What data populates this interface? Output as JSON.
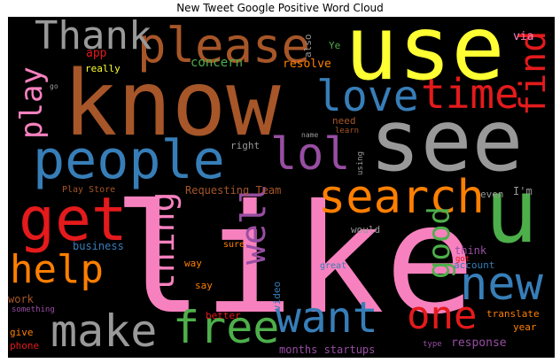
{
  "title": "New Tweet Google Positive Word Cloud",
  "palette": {
    "red": "#e41a1c",
    "blue": "#377eb8",
    "green": "#4daf4a",
    "purple": "#984ea3",
    "orange": "#ff7f00",
    "yellow": "#ffff33",
    "brown": "#a65628",
    "pink": "#f781bf",
    "gray": "#999999",
    "background": "#000000"
  },
  "words": [
    {
      "id": "like",
      "text": "like",
      "color": "#f781bf"
    },
    {
      "id": "know",
      "text": "know",
      "color": "#a65628"
    },
    {
      "id": "use",
      "text": "use",
      "color": "#ffff33"
    },
    {
      "id": "see",
      "text": "see",
      "color": "#999999"
    },
    {
      "id": "u",
      "text": "u",
      "color": "#4daf4a"
    },
    {
      "id": "people",
      "text": "people",
      "color": "#377eb8"
    },
    {
      "id": "please",
      "text": "please",
      "color": "#a65628"
    },
    {
      "id": "get",
      "text": "get",
      "color": "#e41a1c"
    },
    {
      "id": "search",
      "text": "search",
      "color": "#ff7f00"
    },
    {
      "id": "lol",
      "text": "lol",
      "color": "#984ea3"
    },
    {
      "id": "love",
      "text": "love",
      "color": "#377eb8"
    },
    {
      "id": "time",
      "text": "time",
      "color": "#e41a1c"
    },
    {
      "id": "find",
      "text": "find",
      "color": "#e41a1c"
    },
    {
      "id": "thank",
      "text": "Thank",
      "color": "#999999"
    },
    {
      "id": "make",
      "text": "make",
      "color": "#999999"
    },
    {
      "id": "free",
      "text": "free",
      "color": "#4daf4a"
    },
    {
      "id": "want",
      "text": "want",
      "color": "#377eb8"
    },
    {
      "id": "help",
      "text": "help",
      "color": "#ff7f00"
    },
    {
      "id": "new",
      "text": "new",
      "color": "#377eb8"
    },
    {
      "id": "one",
      "text": "one",
      "color": "#e41a1c"
    },
    {
      "id": "good",
      "text": "good",
      "color": "#4daf4a"
    },
    {
      "id": "thing",
      "text": "thing",
      "color": "#f781bf"
    },
    {
      "id": "well",
      "text": "well",
      "color": "#984ea3"
    },
    {
      "id": "play",
      "text": "play",
      "color": "#f781bf"
    },
    {
      "id": "app",
      "text": "app",
      "color": "#e41a1c"
    },
    {
      "id": "really",
      "text": "really",
      "color": "#ffff33"
    },
    {
      "id": "concern",
      "text": "concern",
      "color": "#4daf4a"
    },
    {
      "id": "resolve",
      "text": "resolve",
      "color": "#ff7f00"
    },
    {
      "id": "also",
      "text": "also",
      "color": "#999999"
    },
    {
      "id": "ye",
      "text": "Ye",
      "color": "#4daf4a"
    },
    {
      "id": "via",
      "text": "via",
      "color": "#f781bf"
    },
    {
      "id": "go",
      "text": "go",
      "color": "#999999"
    },
    {
      "id": "need",
      "text": "need",
      "color": "#a65628"
    },
    {
      "id": "learn",
      "text": "learn",
      "color": "#a65628"
    },
    {
      "id": "name",
      "text": "name",
      "color": "#999999"
    },
    {
      "id": "right",
      "text": "right",
      "color": "#999999"
    },
    {
      "id": "using",
      "text": "using",
      "color": "#999999"
    },
    {
      "id": "play_store",
      "text": "Play Store",
      "color": "#a65628"
    },
    {
      "id": "requesting_team",
      "text": "Requesting Team",
      "color": "#a65628"
    },
    {
      "id": "even",
      "text": "even",
      "color": "#999999"
    },
    {
      "id": "im",
      "text": "I'm",
      "color": "#999999"
    },
    {
      "id": "business",
      "text": "business",
      "color": "#377eb8"
    },
    {
      "id": "sure",
      "text": "sure",
      "color": "#ff7f00"
    },
    {
      "id": "would",
      "text": "would",
      "color": "#999999"
    },
    {
      "id": "think",
      "text": "think",
      "color": "#984ea3"
    },
    {
      "id": "got",
      "text": "got",
      "color": "#e41a1c"
    },
    {
      "id": "account",
      "text": "account",
      "color": "#377eb8"
    },
    {
      "id": "way",
      "text": "way",
      "color": "#ff7f00"
    },
    {
      "id": "great",
      "text": "great",
      "color": "#377eb8"
    },
    {
      "id": "say",
      "text": "say",
      "color": "#ff7f00"
    },
    {
      "id": "work",
      "text": "work",
      "color": "#a65628"
    },
    {
      "id": "video",
      "text": "video",
      "color": "#377eb8"
    },
    {
      "id": "something",
      "text": "something",
      "color": "#984ea3"
    },
    {
      "id": "better",
      "text": "better",
      "color": "#e41a1c"
    },
    {
      "id": "give",
      "text": "give",
      "color": "#ff7f00"
    },
    {
      "id": "phone",
      "text": "phone",
      "color": "#e41a1c"
    },
    {
      "id": "translate",
      "text": "translate",
      "color": "#ff7f00"
    },
    {
      "id": "year",
      "text": "year",
      "color": "#ff7f00"
    },
    {
      "id": "response",
      "text": "response",
      "color": "#984ea3"
    },
    {
      "id": "months_startups",
      "text": "months startups",
      "color": "#984ea3"
    },
    {
      "id": "type",
      "text": "type",
      "color": "#984ea3"
    }
  ]
}
